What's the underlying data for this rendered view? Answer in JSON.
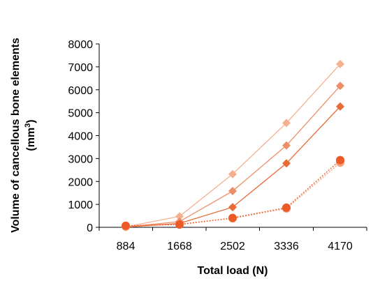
{
  "chart_data": {
    "type": "line",
    "title": "",
    "xlabel": "Total load (N)",
    "ylabel_line1": "Volume of cancellous bone elements",
    "ylabel_line2_prefix": "(mm",
    "ylabel_line2_sup": "3",
    "ylabel_line2_suffix": ")",
    "categories": [
      "884",
      "1668",
      "2502",
      "3336",
      "4170"
    ],
    "yticks": [
      "0",
      "1000",
      "2000",
      "3000",
      "4000",
      "5000",
      "6000",
      "7000",
      "8000"
    ],
    "ylim": [
      0,
      8000
    ],
    "grid": false,
    "legend": "none",
    "series": [
      {
        "values": [
          20,
          480,
          2320,
          4550,
          7120
        ],
        "color": "#f5b090",
        "marker": "diamond",
        "dash": false
      },
      {
        "values": [
          15,
          250,
          1580,
          3570,
          6170
        ],
        "color": "#ee8e66",
        "marker": "diamond",
        "dash": false
      },
      {
        "values": [
          10,
          170,
          880,
          2790,
          5270
        ],
        "color": "#e86a36",
        "marker": "diamond",
        "dash": false
      },
      {
        "values": [
          30,
          140,
          390,
          820,
          2820
        ],
        "color": "#f5a07a",
        "marker": "circle",
        "dash": true
      },
      {
        "values": [
          70,
          120,
          410,
          860,
          2930
        ],
        "color": "#ec5a28",
        "marker": "circle",
        "dash": true
      }
    ]
  }
}
